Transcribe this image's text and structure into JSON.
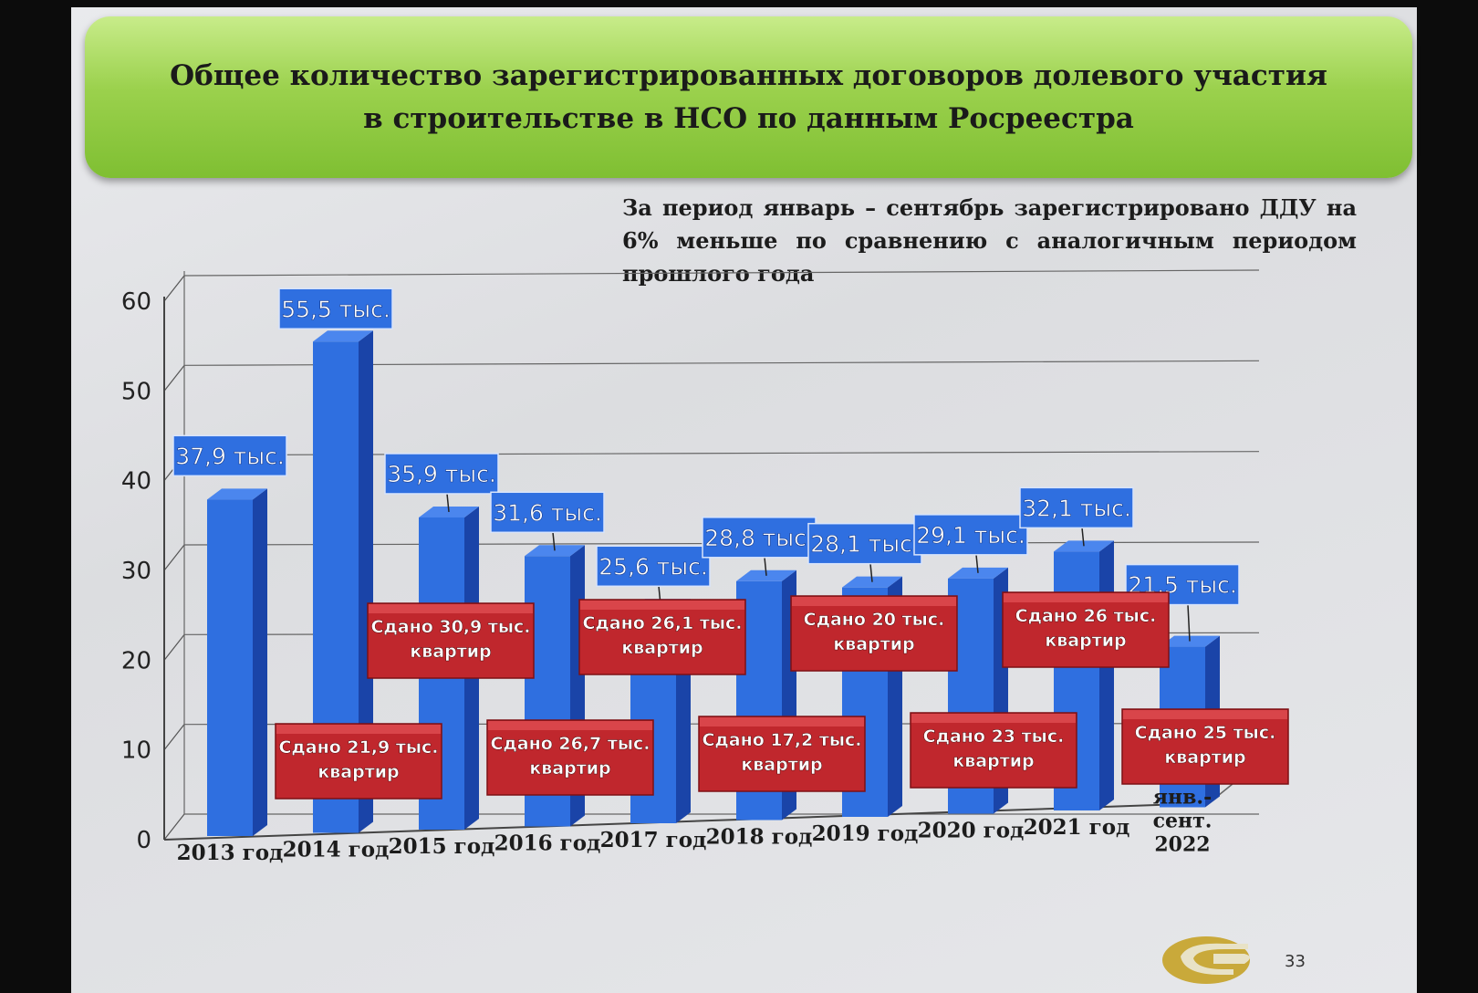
{
  "slide": {
    "title": "Общее количество зарегистрированных договоров долевого участия в строительстве в НСО по данным Росреестра",
    "note": "За период январь – сентябрь зарегистрировано ДДУ на 6% меньше по сравнению с аналогичным периодом прошлого года",
    "page_number": "33",
    "logo_text": "СР"
  },
  "chart_data": {
    "type": "bar",
    "style": "3d-column",
    "categories": [
      "2013 год",
      "2014 год",
      "2015 год",
      "2016 год",
      "2017 год",
      "2018 год",
      "2019 год",
      "2020 год",
      "2021 год",
      "янв.-сент. 2022"
    ],
    "values": [
      37.9,
      55.5,
      35.9,
      31.6,
      25.6,
      28.8,
      28.1,
      29.1,
      32.1,
      21.5
    ],
    "value_labels": [
      "37,9 тыс.",
      "55,5 тыс.",
      "35,9 тыс.",
      "31,6 тыс.",
      "25,6 тыс.",
      "28,8 тыс.",
      "28,1 тыс.",
      "29,1 тыс.",
      "32,1 тыс.",
      "21,5 тыс."
    ],
    "delivered": [
      null,
      21.9,
      30.9,
      26.7,
      26.1,
      17.2,
      20,
      23,
      26,
      25
    ],
    "delivered_labels": [
      null,
      [
        "Сдано 21,9 тыс.",
        "квартир"
      ],
      [
        "Сдано 30,9 тыс.",
        "квартир"
      ],
      [
        "Сдано 26,7 тыс.",
        "квартир"
      ],
      [
        "Сдано 26,1 тыс.",
        "квартир"
      ],
      [
        "Сдано 17,2 тыс.",
        "квартир"
      ],
      [
        "Сдано 20 тыс.",
        "квартир"
      ],
      [
        "Сдано 23 тыс.",
        "квартир"
      ],
      [
        "Сдано 26 тыс.",
        "квартир"
      ],
      [
        "Сдано 25 тыс.",
        "квартир"
      ]
    ],
    "yticks": [
      0,
      10,
      20,
      30,
      40,
      50,
      60
    ],
    "ylim": [
      0,
      60
    ],
    "grid": true,
    "colors": {
      "bar": "#2f6fe0",
      "bar_side": "#1a44a8",
      "label_box": "#2f6fe0",
      "delivered_box": "#c0272d",
      "banner": "#8fca3f"
    }
  }
}
